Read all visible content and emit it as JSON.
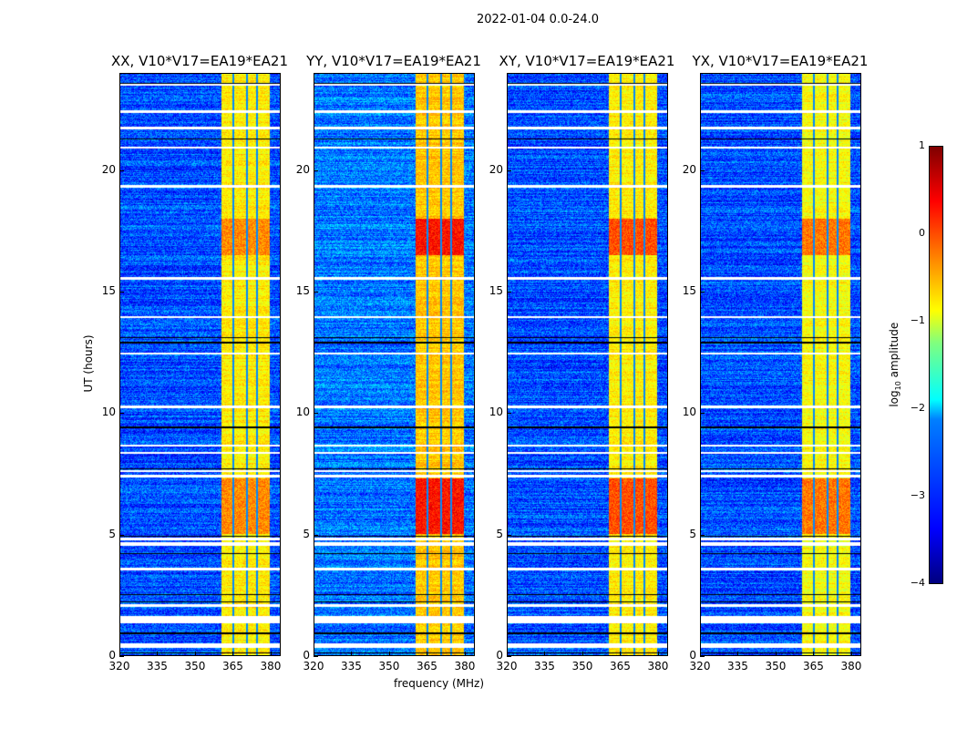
{
  "chart_data": {
    "type": "heatmap",
    "title": "2022-01-04 0.0-24.0",
    "xlabel": "frequency (MHz)",
    "ylabel": "UT (hours)",
    "xlim": [
      320,
      384
    ],
    "ylim": [
      0,
      24
    ],
    "xticks": [
      "320",
      "335",
      "350",
      "365",
      "380"
    ],
    "yticks": [
      "0",
      "5",
      "10",
      "15",
      "20"
    ],
    "colormap": "jet",
    "colorbar": {
      "label": "log10 amplitude",
      "label_main": "log",
      "label_sub": "10",
      "label_tail": " amplitude",
      "range": [
        -4,
        1
      ],
      "ticks": [
        "1",
        "0",
        "−1",
        "−2",
        "−3",
        "−4"
      ]
    },
    "panels": [
      {
        "title": "XX, V10*V17=EA19*EA21",
        "background_level": -3.0,
        "band_level": -0.8,
        "hot_level": -0.3
      },
      {
        "title": "YY, V10*V17=EA19*EA21",
        "background_level": -2.8,
        "band_level": -0.6,
        "hot_level": 0.3
      },
      {
        "title": "XY, V10*V17=EA19*EA21",
        "background_level": -3.0,
        "band_level": -0.8,
        "hot_level": 0.0
      },
      {
        "title": "YX, V10*V17=EA19*EA21",
        "background_level": -3.0,
        "band_level": -0.9,
        "hot_level": -0.2
      }
    ],
    "rfi_band_mhz": [
      360.5,
      380
    ],
    "band_gaps_mhz": [
      365.5,
      371,
      375
    ],
    "hot_intervals_hours": [
      [
        5.0,
        7.3
      ],
      [
        16.5,
        18.0
      ]
    ],
    "flagged_intervals_hours": [
      [
        0.3,
        0.5
      ],
      [
        1.3,
        1.6
      ],
      [
        4.5,
        4.65
      ],
      [
        4.75,
        4.85
      ],
      [
        3.5,
        3.6
      ],
      [
        2.0,
        2.1
      ],
      [
        7.35,
        7.45
      ],
      [
        7.55,
        7.65
      ],
      [
        8.3,
        8.4
      ],
      [
        8.6,
        8.7
      ],
      [
        10.2,
        10.3
      ],
      [
        12.4,
        12.5
      ],
      [
        13.9,
        14.0
      ],
      [
        15.5,
        15.6
      ],
      [
        19.3,
        19.4
      ],
      [
        20.9,
        21.0
      ],
      [
        21.7,
        21.8
      ],
      [
        22.4,
        22.5
      ],
      [
        23.5,
        23.6
      ]
    ],
    "black_lines_hours": [
      0.1,
      0.9,
      2.2,
      2.5,
      4.2,
      4.9,
      7.7,
      9.4,
      12.9,
      13.1,
      21.3,
      23.6
    ]
  }
}
